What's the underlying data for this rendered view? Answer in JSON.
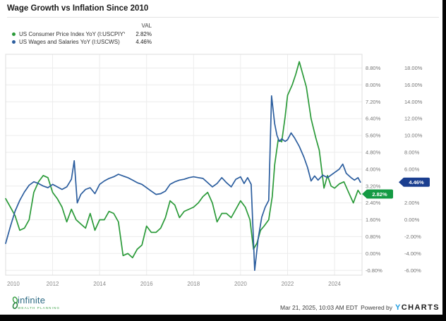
{
  "title": "Wage Growth vs Inflation Since 2010",
  "legend": {
    "val_header": "VAL",
    "series": [
      {
        "label": "US Consumer Price Index YoY (I:USCPIYY)",
        "value": "2.82%",
        "color": "#2a9a38"
      },
      {
        "label": "US Wages and Salaries YoY (I:USCWS)",
        "value": "4.46%",
        "color": "#2b5d9e"
      }
    ]
  },
  "footer": {
    "timestamp": "Mar 21, 2025, 10:03 AM EDT",
    "powered_by": "Powered by",
    "brand_y": "Y",
    "brand_rest": "CHARTS"
  },
  "logo": {
    "name": "infinite",
    "subtext": "WEALTH PLANNING"
  },
  "chart_data": {
    "type": "line",
    "title": "Wage Growth vs Inflation Since 2010",
    "x_range": [
      2010,
      2025.17
    ],
    "x_ticks": [
      2010,
      2012,
      2014,
      2016,
      2018,
      2020,
      2022,
      2024
    ],
    "x_tick_labels": [
      "2010",
      "2012",
      "2014",
      "2016",
      "2018",
      "2020",
      "2022",
      "2024"
    ],
    "grid": true,
    "legend_position": "top-left",
    "axes": {
      "cpi": {
        "side": "right-inner",
        "min": -0.8,
        "max": 8.8,
        "step": 0.8,
        "tick_values": [
          8.8,
          8.0,
          7.2,
          6.4,
          5.6,
          4.8,
          4.0,
          3.2,
          2.4,
          1.6,
          0.8,
          0.0,
          -0.8
        ],
        "tick_labels": [
          "8.80%",
          "8.00%",
          "7.20%",
          "6.40%",
          "5.60%",
          "4.80%",
          "4.00%",
          "3.20%",
          "2.40%",
          "1.60%",
          "0.80%",
          "0.00%",
          "-0.80%"
        ]
      },
      "wages": {
        "side": "right-outer",
        "min": -6,
        "max": 18,
        "step": 2,
        "tick_values": [
          18,
          16,
          14,
          12,
          10,
          8,
          6,
          4,
          2,
          0,
          -2,
          -4,
          -6
        ],
        "tick_labels": [
          "18.00%",
          "16.00%",
          "14.00%",
          "12.00%",
          "10.00%",
          "8.00%",
          "6.00%",
          "4.00%",
          "2.00%",
          "0.00%",
          "-2.00%",
          "-4.00%",
          "-6.00%"
        ],
        "hidden_label": "4.00%"
      }
    },
    "series": [
      {
        "name": "US Consumer Price Index YoY (I:USCPIYY)",
        "axis": "cpi",
        "color": "#2a9a38",
        "badge_color": "#149a43",
        "current_value": 2.82,
        "value_label": "2.82%",
        "points": [
          [
            2010.0,
            2.6
          ],
          [
            2010.2,
            2.2
          ],
          [
            2010.4,
            1.8
          ],
          [
            2010.6,
            1.1
          ],
          [
            2010.8,
            1.2
          ],
          [
            2011.0,
            1.6
          ],
          [
            2011.2,
            2.9
          ],
          [
            2011.4,
            3.4
          ],
          [
            2011.6,
            3.7
          ],
          [
            2011.8,
            3.6
          ],
          [
            2012.0,
            2.9
          ],
          [
            2012.2,
            2.6
          ],
          [
            2012.4,
            2.2
          ],
          [
            2012.6,
            1.5
          ],
          [
            2012.8,
            2.1
          ],
          [
            2013.0,
            1.6
          ],
          [
            2013.2,
            1.4
          ],
          [
            2013.4,
            1.2
          ],
          [
            2013.6,
            1.9
          ],
          [
            2013.8,
            1.1
          ],
          [
            2014.0,
            1.6
          ],
          [
            2014.2,
            1.6
          ],
          [
            2014.4,
            2.0
          ],
          [
            2014.6,
            1.9
          ],
          [
            2014.8,
            1.5
          ],
          [
            2015.0,
            -0.1
          ],
          [
            2015.2,
            0.0
          ],
          [
            2015.4,
            -0.2
          ],
          [
            2015.6,
            0.2
          ],
          [
            2015.8,
            0.4
          ],
          [
            2016.0,
            1.3
          ],
          [
            2016.2,
            1.0
          ],
          [
            2016.4,
            1.0
          ],
          [
            2016.6,
            1.2
          ],
          [
            2016.8,
            1.7
          ],
          [
            2017.0,
            2.5
          ],
          [
            2017.2,
            2.3
          ],
          [
            2017.4,
            1.7
          ],
          [
            2017.6,
            2.0
          ],
          [
            2017.8,
            2.1
          ],
          [
            2018.0,
            2.2
          ],
          [
            2018.2,
            2.4
          ],
          [
            2018.4,
            2.7
          ],
          [
            2018.6,
            2.9
          ],
          [
            2018.8,
            2.4
          ],
          [
            2019.0,
            1.5
          ],
          [
            2019.2,
            1.9
          ],
          [
            2019.4,
            1.9
          ],
          [
            2019.6,
            1.7
          ],
          [
            2019.8,
            2.1
          ],
          [
            2020.0,
            2.5
          ],
          [
            2020.2,
            2.2
          ],
          [
            2020.4,
            1.6
          ],
          [
            2020.55,
            0.2
          ],
          [
            2020.7,
            0.5
          ],
          [
            2020.85,
            1.1
          ],
          [
            2021.0,
            1.3
          ],
          [
            2021.2,
            1.6
          ],
          [
            2021.35,
            2.7
          ],
          [
            2021.45,
            4.2
          ],
          [
            2021.6,
            5.4
          ],
          [
            2021.75,
            5.3
          ],
          [
            2021.9,
            6.5
          ],
          [
            2022.0,
            7.5
          ],
          [
            2022.2,
            8.0
          ],
          [
            2022.35,
            8.5
          ],
          [
            2022.5,
            9.1
          ],
          [
            2022.65,
            8.5
          ],
          [
            2022.8,
            7.9
          ],
          [
            2023.0,
            6.4
          ],
          [
            2023.2,
            5.5
          ],
          [
            2023.35,
            4.9
          ],
          [
            2023.55,
            3.1
          ],
          [
            2023.7,
            3.7
          ],
          [
            2023.85,
            3.2
          ],
          [
            2024.0,
            3.1
          ],
          [
            2024.2,
            3.3
          ],
          [
            2024.4,
            3.4
          ],
          [
            2024.6,
            2.9
          ],
          [
            2024.8,
            2.4
          ],
          [
            2025.0,
            3.0
          ],
          [
            2025.1,
            2.82
          ]
        ]
      },
      {
        "name": "US Wages and Salaries YoY (I:USCWS)",
        "axis": "wages",
        "color": "#2b5d9e",
        "badge_color": "#1a3e8f",
        "current_value": 4.46,
        "value_label": "4.46%",
        "points": [
          [
            2010.0,
            -2.8
          ],
          [
            2010.2,
            -0.8
          ],
          [
            2010.4,
            1.0
          ],
          [
            2010.6,
            2.3
          ],
          [
            2010.8,
            3.3
          ],
          [
            2011.0,
            4.1
          ],
          [
            2011.2,
            4.5
          ],
          [
            2011.4,
            4.3
          ],
          [
            2011.6,
            4.0
          ],
          [
            2011.8,
            3.8
          ],
          [
            2012.0,
            4.2
          ],
          [
            2012.2,
            3.9
          ],
          [
            2012.4,
            3.6
          ],
          [
            2012.6,
            3.9
          ],
          [
            2012.8,
            4.8
          ],
          [
            2012.92,
            7.0
          ],
          [
            2013.05,
            2.0
          ],
          [
            2013.2,
            3.0
          ],
          [
            2013.4,
            3.6
          ],
          [
            2013.6,
            3.8
          ],
          [
            2013.8,
            3.1
          ],
          [
            2014.0,
            4.2
          ],
          [
            2014.2,
            4.6
          ],
          [
            2014.4,
            4.9
          ],
          [
            2014.6,
            5.1
          ],
          [
            2014.8,
            5.4
          ],
          [
            2015.0,
            5.2
          ],
          [
            2015.2,
            5.0
          ],
          [
            2015.4,
            4.7
          ],
          [
            2015.6,
            4.4
          ],
          [
            2015.8,
            4.2
          ],
          [
            2016.0,
            3.8
          ],
          [
            2016.2,
            3.4
          ],
          [
            2016.4,
            3.0
          ],
          [
            2016.6,
            3.1
          ],
          [
            2016.8,
            3.4
          ],
          [
            2017.0,
            4.2
          ],
          [
            2017.2,
            4.5
          ],
          [
            2017.4,
            4.7
          ],
          [
            2017.6,
            4.8
          ],
          [
            2017.8,
            5.0
          ],
          [
            2018.0,
            5.1
          ],
          [
            2018.2,
            5.0
          ],
          [
            2018.4,
            4.9
          ],
          [
            2018.6,
            4.4
          ],
          [
            2018.8,
            3.9
          ],
          [
            2019.0,
            4.3
          ],
          [
            2019.2,
            5.0
          ],
          [
            2019.4,
            4.4
          ],
          [
            2019.6,
            3.9
          ],
          [
            2019.8,
            4.8
          ],
          [
            2020.0,
            5.1
          ],
          [
            2020.15,
            4.3
          ],
          [
            2020.3,
            5.0
          ],
          [
            2020.45,
            4.2
          ],
          [
            2020.6,
            -6.0
          ],
          [
            2020.75,
            -2.2
          ],
          [
            2020.9,
            0.3
          ],
          [
            2021.05,
            1.5
          ],
          [
            2021.2,
            2.3
          ],
          [
            2021.32,
            14.7
          ],
          [
            2021.45,
            11.4
          ],
          [
            2021.55,
            10.0
          ],
          [
            2021.65,
            9.3
          ],
          [
            2021.75,
            9.6
          ],
          [
            2021.9,
            9.3
          ],
          [
            2022.0,
            9.5
          ],
          [
            2022.15,
            10.3
          ],
          [
            2022.3,
            9.7
          ],
          [
            2022.5,
            8.7
          ],
          [
            2022.7,
            7.4
          ],
          [
            2022.85,
            6.2
          ],
          [
            2023.0,
            4.6
          ],
          [
            2023.15,
            5.2
          ],
          [
            2023.3,
            4.7
          ],
          [
            2023.5,
            5.3
          ],
          [
            2023.7,
            5.0
          ],
          [
            2023.85,
            5.3
          ],
          [
            2024.0,
            5.6
          ],
          [
            2024.2,
            6.0
          ],
          [
            2024.35,
            6.6
          ],
          [
            2024.5,
            5.5
          ],
          [
            2024.7,
            5.0
          ],
          [
            2024.85,
            4.7
          ],
          [
            2025.0,
            5.0
          ],
          [
            2025.1,
            4.46
          ]
        ]
      }
    ]
  }
}
